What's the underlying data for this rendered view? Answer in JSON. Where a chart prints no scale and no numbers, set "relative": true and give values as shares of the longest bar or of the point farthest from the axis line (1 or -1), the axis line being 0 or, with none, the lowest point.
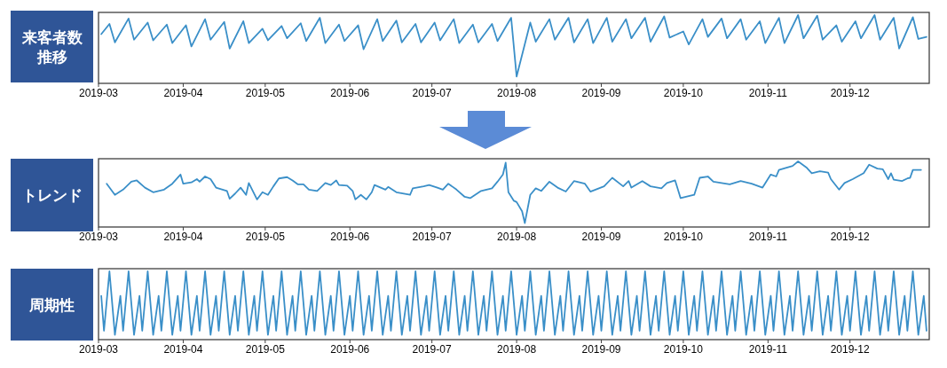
{
  "chart_data": [
    {
      "type": "line",
      "title": "来客者数推移",
      "relative": true,
      "color": "#3a8fc8",
      "xlim": [
        "2019-03-01",
        "2019-12-30"
      ],
      "xticks": [
        "2019-03",
        "2019-04",
        "2019-05",
        "2019-06",
        "2019-07",
        "2019-08",
        "2019-09",
        "2019-10",
        "2019-11",
        "2019-12"
      ],
      "x": [
        "2019-03-02",
        "2019-03-05",
        "2019-03-07",
        "2019-03-12",
        "2019-03-14",
        "2019-03-19",
        "2019-03-21",
        "2019-03-26",
        "2019-03-28",
        "2019-04-02",
        "2019-04-04",
        "2019-04-09",
        "2019-04-11",
        "2019-04-16",
        "2019-04-18",
        "2019-04-23",
        "2019-04-25",
        "2019-04-30",
        "2019-05-02",
        "2019-05-07",
        "2019-05-09",
        "2019-05-14",
        "2019-05-16",
        "2019-05-21",
        "2019-05-23",
        "2019-05-28",
        "2019-05-30",
        "2019-06-04",
        "2019-06-06",
        "2019-06-11",
        "2019-06-13",
        "2019-06-18",
        "2019-06-20",
        "2019-06-25",
        "2019-06-27",
        "2019-07-02",
        "2019-07-04",
        "2019-07-09",
        "2019-07-11",
        "2019-07-16",
        "2019-07-18",
        "2019-07-23",
        "2019-07-25",
        "2019-07-30",
        "2019-08-01",
        "2019-08-06",
        "2019-08-08",
        "2019-08-13",
        "2019-08-15",
        "2019-08-20",
        "2019-08-22",
        "2019-08-27",
        "2019-08-29",
        "2019-09-03",
        "2019-09-05",
        "2019-09-10",
        "2019-09-12",
        "2019-09-17",
        "2019-09-19",
        "2019-09-24",
        "2019-09-26",
        "2019-10-01",
        "2019-10-03",
        "2019-10-08",
        "2019-10-10",
        "2019-10-15",
        "2019-10-17",
        "2019-10-22",
        "2019-10-24",
        "2019-10-29",
        "2019-10-31",
        "2019-11-05",
        "2019-11-07",
        "2019-11-12",
        "2019-11-14",
        "2019-11-19",
        "2019-11-21",
        "2019-11-26",
        "2019-11-28",
        "2019-12-03",
        "2019-12-05",
        "2019-12-10",
        "2019-12-12",
        "2019-12-17",
        "2019-12-19",
        "2019-12-24",
        "2019-12-26",
        "2019-12-29"
      ],
      "values": [
        0.72,
        0.87,
        0.6,
        0.95,
        0.64,
        0.89,
        0.63,
        0.86,
        0.59,
        0.85,
        0.54,
        0.94,
        0.64,
        0.9,
        0.51,
        0.91,
        0.59,
        0.8,
        0.63,
        0.84,
        0.66,
        0.88,
        0.62,
        0.96,
        0.59,
        0.86,
        0.62,
        0.85,
        0.5,
        0.94,
        0.62,
        0.92,
        0.6,
        0.87,
        0.6,
        0.89,
        0.63,
        0.94,
        0.59,
        0.86,
        0.6,
        0.87,
        0.62,
        0.96,
        0.1,
        0.89,
        0.61,
        0.94,
        0.64,
        0.96,
        0.6,
        0.94,
        0.59,
        0.96,
        0.61,
        0.94,
        0.66,
        0.96,
        0.61,
        0.98,
        0.67,
        0.76,
        0.57,
        0.94,
        0.68,
        0.95,
        0.66,
        0.94,
        0.64,
        0.91,
        0.59,
        0.96,
        0.59,
        1.0,
        0.66,
        0.99,
        0.64,
        0.85,
        0.61,
        0.91,
        0.66,
        1.0,
        0.64,
        0.96,
        0.51,
        0.97,
        0.65,
        0.68
      ]
    },
    {
      "type": "line",
      "title": "トレンド",
      "relative": true,
      "color": "#3a8fc8",
      "xlim": [
        "2019-03-01",
        "2019-12-30"
      ],
      "xticks": [
        "2019-03",
        "2019-04",
        "2019-05",
        "2019-06",
        "2019-07",
        "2019-08",
        "2019-09",
        "2019-10",
        "2019-11",
        "2019-12"
      ],
      "x": [
        "2019-03-04",
        "2019-03-07",
        "2019-03-10",
        "2019-03-13",
        "2019-03-15",
        "2019-03-18",
        "2019-03-21",
        "2019-03-25",
        "2019-03-28",
        "2019-03-31",
        "2019-04-01",
        "2019-04-04",
        "2019-04-06",
        "2019-04-07",
        "2019-04-09",
        "2019-04-11",
        "2019-04-13",
        "2019-04-17",
        "2019-04-18",
        "2019-04-20",
        "2019-04-22",
        "2019-04-24",
        "2019-04-25",
        "2019-04-28",
        "2019-04-30",
        "2019-05-02",
        "2019-05-04",
        "2019-05-06",
        "2019-05-09",
        "2019-05-11",
        "2019-05-13",
        "2019-05-15",
        "2019-05-17",
        "2019-05-20",
        "2019-05-23",
        "2019-05-25",
        "2019-05-27",
        "2019-05-28",
        "2019-05-31",
        "2019-06-02",
        "2019-06-03",
        "2019-06-05",
        "2019-06-07",
        "2019-06-09",
        "2019-06-10",
        "2019-06-14",
        "2019-06-15",
        "2019-06-18",
        "2019-06-23",
        "2019-06-24",
        "2019-06-28",
        "2019-06-30",
        "2019-07-03",
        "2019-07-05",
        "2019-07-07",
        "2019-07-10",
        "2019-07-13",
        "2019-07-15",
        "2019-07-19",
        "2019-07-23",
        "2019-07-25",
        "2019-07-27",
        "2019-07-28",
        "2019-07-29",
        "2019-07-31",
        "2019-08-01",
        "2019-08-03",
        "2019-08-04",
        "2019-08-06",
        "2019-08-08",
        "2019-08-10",
        "2019-08-13",
        "2019-08-16",
        "2019-08-19",
        "2019-08-22",
        "2019-08-26",
        "2019-08-28",
        "2019-09-02",
        "2019-09-05",
        "2019-09-09",
        "2019-09-11",
        "2019-09-12",
        "2019-09-16",
        "2019-09-19",
        "2019-09-23",
        "2019-09-25",
        "2019-09-28",
        "2019-09-30",
        "2019-10-05",
        "2019-10-07",
        "2019-10-10",
        "2019-10-12",
        "2019-10-18",
        "2019-10-22",
        "2019-10-26",
        "2019-10-30",
        "2019-11-02",
        "2019-11-04",
        "2019-11-05",
        "2019-11-10",
        "2019-11-12",
        "2019-11-15",
        "2019-11-17",
        "2019-11-20",
        "2019-11-23",
        "2019-11-24",
        "2019-11-27",
        "2019-11-29",
        "2019-12-02",
        "2019-12-06",
        "2019-12-08",
        "2019-12-11",
        "2019-12-13",
        "2019-12-15",
        "2019-12-16",
        "2019-12-17",
        "2019-12-20",
        "2019-12-22",
        "2019-12-23",
        "2019-12-24",
        "2019-12-27"
      ],
      "values": [
        0.66,
        0.49,
        0.57,
        0.69,
        0.71,
        0.6,
        0.53,
        0.57,
        0.66,
        0.8,
        0.66,
        0.68,
        0.73,
        0.69,
        0.77,
        0.73,
        0.6,
        0.55,
        0.43,
        0.51,
        0.6,
        0.49,
        0.67,
        0.42,
        0.53,
        0.49,
        0.62,
        0.74,
        0.76,
        0.71,
        0.65,
        0.65,
        0.57,
        0.55,
        0.67,
        0.64,
        0.71,
        0.64,
        0.63,
        0.55,
        0.42,
        0.49,
        0.42,
        0.53,
        0.64,
        0.57,
        0.61,
        0.53,
        0.49,
        0.59,
        0.62,
        0.64,
        0.6,
        0.57,
        0.66,
        0.57,
        0.46,
        0.44,
        0.55,
        0.59,
        0.69,
        0.8,
        0.98,
        0.53,
        0.4,
        0.38,
        0.24,
        0.06,
        0.49,
        0.59,
        0.55,
        0.69,
        0.6,
        0.54,
        0.7,
        0.66,
        0.54,
        0.62,
        0.75,
        0.62,
        0.7,
        0.6,
        0.7,
        0.62,
        0.59,
        0.67,
        0.71,
        0.44,
        0.49,
        0.75,
        0.77,
        0.69,
        0.65,
        0.7,
        0.66,
        0.6,
        0.8,
        0.77,
        0.87,
        0.93,
        1.0,
        0.91,
        0.82,
        0.85,
        0.83,
        0.73,
        0.57,
        0.67,
        0.73,
        0.82,
        0.95,
        0.89,
        0.88,
        0.73,
        0.82,
        0.72,
        0.7,
        0.74,
        0.75,
        0.87,
        0.87
      ]
    },
    {
      "type": "line",
      "title": "周期性",
      "relative": true,
      "color": "#3a8fc8",
      "xlim": [
        "2019-03-01",
        "2019-12-30"
      ],
      "xticks": [
        "2019-03",
        "2019-04",
        "2019-05",
        "2019-06",
        "2019-07",
        "2019-08",
        "2019-09",
        "2019-10",
        "2019-11",
        "2019-12"
      ],
      "x": [
        "2019-03-02",
        "2019-03-03",
        "2019-03-05",
        "2019-03-07",
        "2019-03-09",
        "2019-03-10",
        "2019-03-12",
        "2019-03-14",
        "2019-03-16",
        "2019-03-17",
        "2019-03-19",
        "2019-03-21",
        "2019-03-23",
        "2019-03-24",
        "2019-03-26",
        "2019-03-28",
        "2019-03-30",
        "2019-03-31",
        "2019-04-02",
        "2019-04-04",
        "2019-04-06",
        "2019-04-07",
        "2019-04-09",
        "2019-04-11",
        "2019-04-13",
        "2019-04-14",
        "2019-04-16",
        "2019-04-18",
        "2019-04-20",
        "2019-04-21",
        "2019-04-23",
        "2019-04-25",
        "2019-04-27",
        "2019-04-28",
        "2019-04-30",
        "2019-05-02",
        "2019-05-04",
        "2019-05-05",
        "2019-05-07",
        "2019-05-09",
        "2019-05-11",
        "2019-05-12",
        "2019-05-14",
        "2019-05-16",
        "2019-05-18",
        "2019-05-19",
        "2019-05-21",
        "2019-05-23",
        "2019-05-25",
        "2019-05-26",
        "2019-05-28",
        "2019-05-30",
        "2019-06-01",
        "2019-06-02",
        "2019-06-04",
        "2019-06-06",
        "2019-06-08",
        "2019-06-09",
        "2019-06-11",
        "2019-06-13",
        "2019-06-15",
        "2019-06-16",
        "2019-06-18",
        "2019-06-20",
        "2019-06-22",
        "2019-06-23",
        "2019-06-25",
        "2019-06-27",
        "2019-06-29",
        "2019-06-30",
        "2019-07-02",
        "2019-07-04",
        "2019-07-06",
        "2019-07-07",
        "2019-07-09",
        "2019-07-11",
        "2019-07-13",
        "2019-07-14",
        "2019-07-16",
        "2019-07-18",
        "2019-07-20",
        "2019-07-21",
        "2019-07-23",
        "2019-07-25",
        "2019-07-27",
        "2019-07-28",
        "2019-07-30",
        "2019-08-01",
        "2019-08-03",
        "2019-08-04",
        "2019-08-06",
        "2019-08-08",
        "2019-08-10",
        "2019-08-11",
        "2019-08-13",
        "2019-08-15",
        "2019-08-17",
        "2019-08-18",
        "2019-08-20",
        "2019-08-22",
        "2019-08-24",
        "2019-08-25",
        "2019-08-27",
        "2019-08-29",
        "2019-08-31",
        "2019-09-01",
        "2019-09-03",
        "2019-09-05",
        "2019-09-07",
        "2019-09-08",
        "2019-09-10",
        "2019-09-12",
        "2019-09-14",
        "2019-09-15",
        "2019-09-17",
        "2019-09-19",
        "2019-09-21",
        "2019-09-22",
        "2019-09-24",
        "2019-09-26",
        "2019-09-28",
        "2019-09-29",
        "2019-10-01",
        "2019-10-03",
        "2019-10-05",
        "2019-10-06",
        "2019-10-08",
        "2019-10-10",
        "2019-10-12",
        "2019-10-13",
        "2019-10-15",
        "2019-10-17",
        "2019-10-19",
        "2019-10-20",
        "2019-10-22",
        "2019-10-24",
        "2019-10-26",
        "2019-10-27",
        "2019-10-29",
        "2019-10-31",
        "2019-11-02",
        "2019-11-03",
        "2019-11-05",
        "2019-11-07",
        "2019-11-09",
        "2019-11-10",
        "2019-11-12",
        "2019-11-14",
        "2019-11-16",
        "2019-11-17",
        "2019-11-19",
        "2019-11-21",
        "2019-11-23",
        "2019-11-24",
        "2019-11-26",
        "2019-11-28",
        "2019-11-30",
        "2019-12-01",
        "2019-12-03",
        "2019-12-05",
        "2019-12-07",
        "2019-12-08",
        "2019-12-10",
        "2019-12-12",
        "2019-12-14",
        "2019-12-15",
        "2019-12-17",
        "2019-12-19",
        "2019-12-21",
        "2019-12-22",
        "2019-12-24",
        "2019-12-26",
        "2019-12-28",
        "2019-12-29"
      ],
      "values": [
        0.64,
        0.13,
        1,
        0.07,
        0.64,
        0.13,
        1,
        0.07,
        0.64,
        0.13,
        1,
        0.07,
        0.64,
        0.13,
        1,
        0.07,
        0.64,
        0.13,
        1,
        0.07,
        0.64,
        0.13,
        1,
        0.07,
        0.64,
        0.13,
        1,
        0.07,
        0.64,
        0.13,
        1,
        0.07,
        0.64,
        0.13,
        1,
        0.07,
        0.64,
        0.13,
        1,
        0.07,
        0.64,
        0.13,
        1,
        0.07,
        0.64,
        0.13,
        1,
        0.07,
        0.64,
        0.13,
        1,
        0.07,
        0.64,
        0.13,
        1,
        0.07,
        0.64,
        0.13,
        1,
        0.07,
        0.64,
        0.13,
        1,
        0.07,
        0.64,
        0.13,
        1,
        0.07,
        0.64,
        0.13,
        1,
        0.07,
        0.64,
        0.13,
        1,
        0.07,
        0.64,
        0.13,
        1,
        0.07,
        0.64,
        0.13,
        1,
        0.07,
        0.64,
        0.13,
        1,
        0.07,
        0.64,
        0.13,
        1,
        0.07,
        0.64,
        0.13,
        1,
        0.07,
        0.64,
        0.13,
        1,
        0.07,
        0.64,
        0.13,
        1,
        0.07,
        0.64,
        0.13,
        1,
        0.07,
        0.64,
        0.13,
        1,
        0.07,
        0.64,
        0.13,
        1,
        0.07,
        0.64,
        0.13,
        1,
        0.07,
        0.64,
        0.13,
        1,
        0.07,
        0.64,
        0.13,
        1,
        0.07,
        0.64,
        0.13,
        1,
        0.07,
        0.64,
        0.13,
        1,
        0.07,
        0.64,
        0.13,
        1,
        0.07,
        0.64,
        0.13,
        1,
        0.07,
        0.64,
        0.13,
        1,
        0.07,
        0.64,
        0.13,
        1,
        0.07,
        0.64,
        0.13,
        1,
        0.07,
        0.64,
        0.13,
        1,
        0.07,
        0.64,
        0.13,
        1,
        0.07,
        0.64,
        0.13,
        1,
        0.07,
        0.64,
        0.13,
        1,
        0.07,
        0.64,
        0.13
      ]
    }
  ]
}
